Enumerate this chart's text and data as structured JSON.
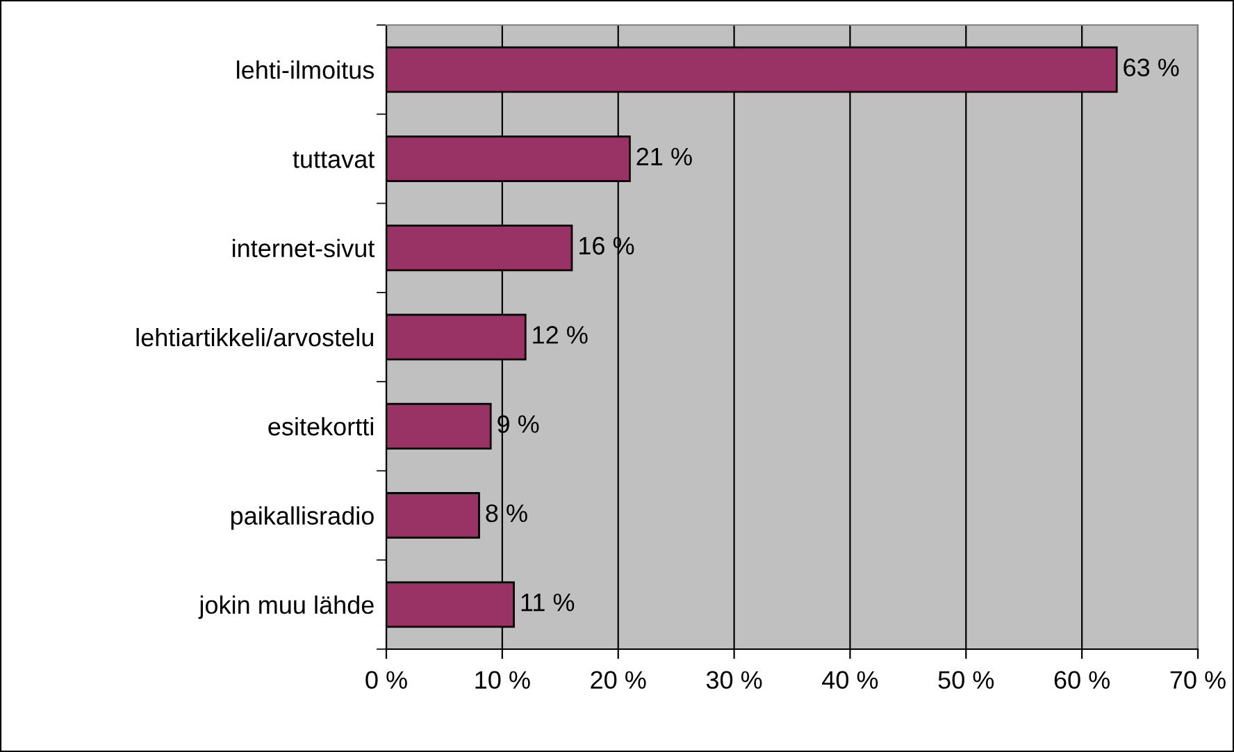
{
  "chart_data": {
    "type": "bar",
    "orientation": "horizontal",
    "categories": [
      "lehti-ilmoitus",
      "tuttavat",
      "internet-sivut",
      "lehtiartikkeli/arvostelu",
      "esitekortti",
      "paikallisradio",
      "jokin muu lähde"
    ],
    "values": [
      63,
      21,
      16,
      12,
      9,
      8,
      11
    ],
    "value_labels": [
      "63 %",
      "21 %",
      "16 %",
      "12 %",
      "9 %",
      "8 %",
      "11 %"
    ],
    "color": "#993366",
    "xlim": [
      0,
      70
    ],
    "xticks": [
      {
        "value": 0,
        "label": "0 %"
      },
      {
        "value": 10,
        "label": "10 %"
      },
      {
        "value": 20,
        "label": "20 %"
      },
      {
        "value": 30,
        "label": "30 %"
      },
      {
        "value": 40,
        "label": "40 %"
      },
      {
        "value": 50,
        "label": "50 %"
      },
      {
        "value": 60,
        "label": "60 %"
      },
      {
        "value": 70,
        "label": "70 %"
      }
    ],
    "grid": "x",
    "legend": false
  }
}
